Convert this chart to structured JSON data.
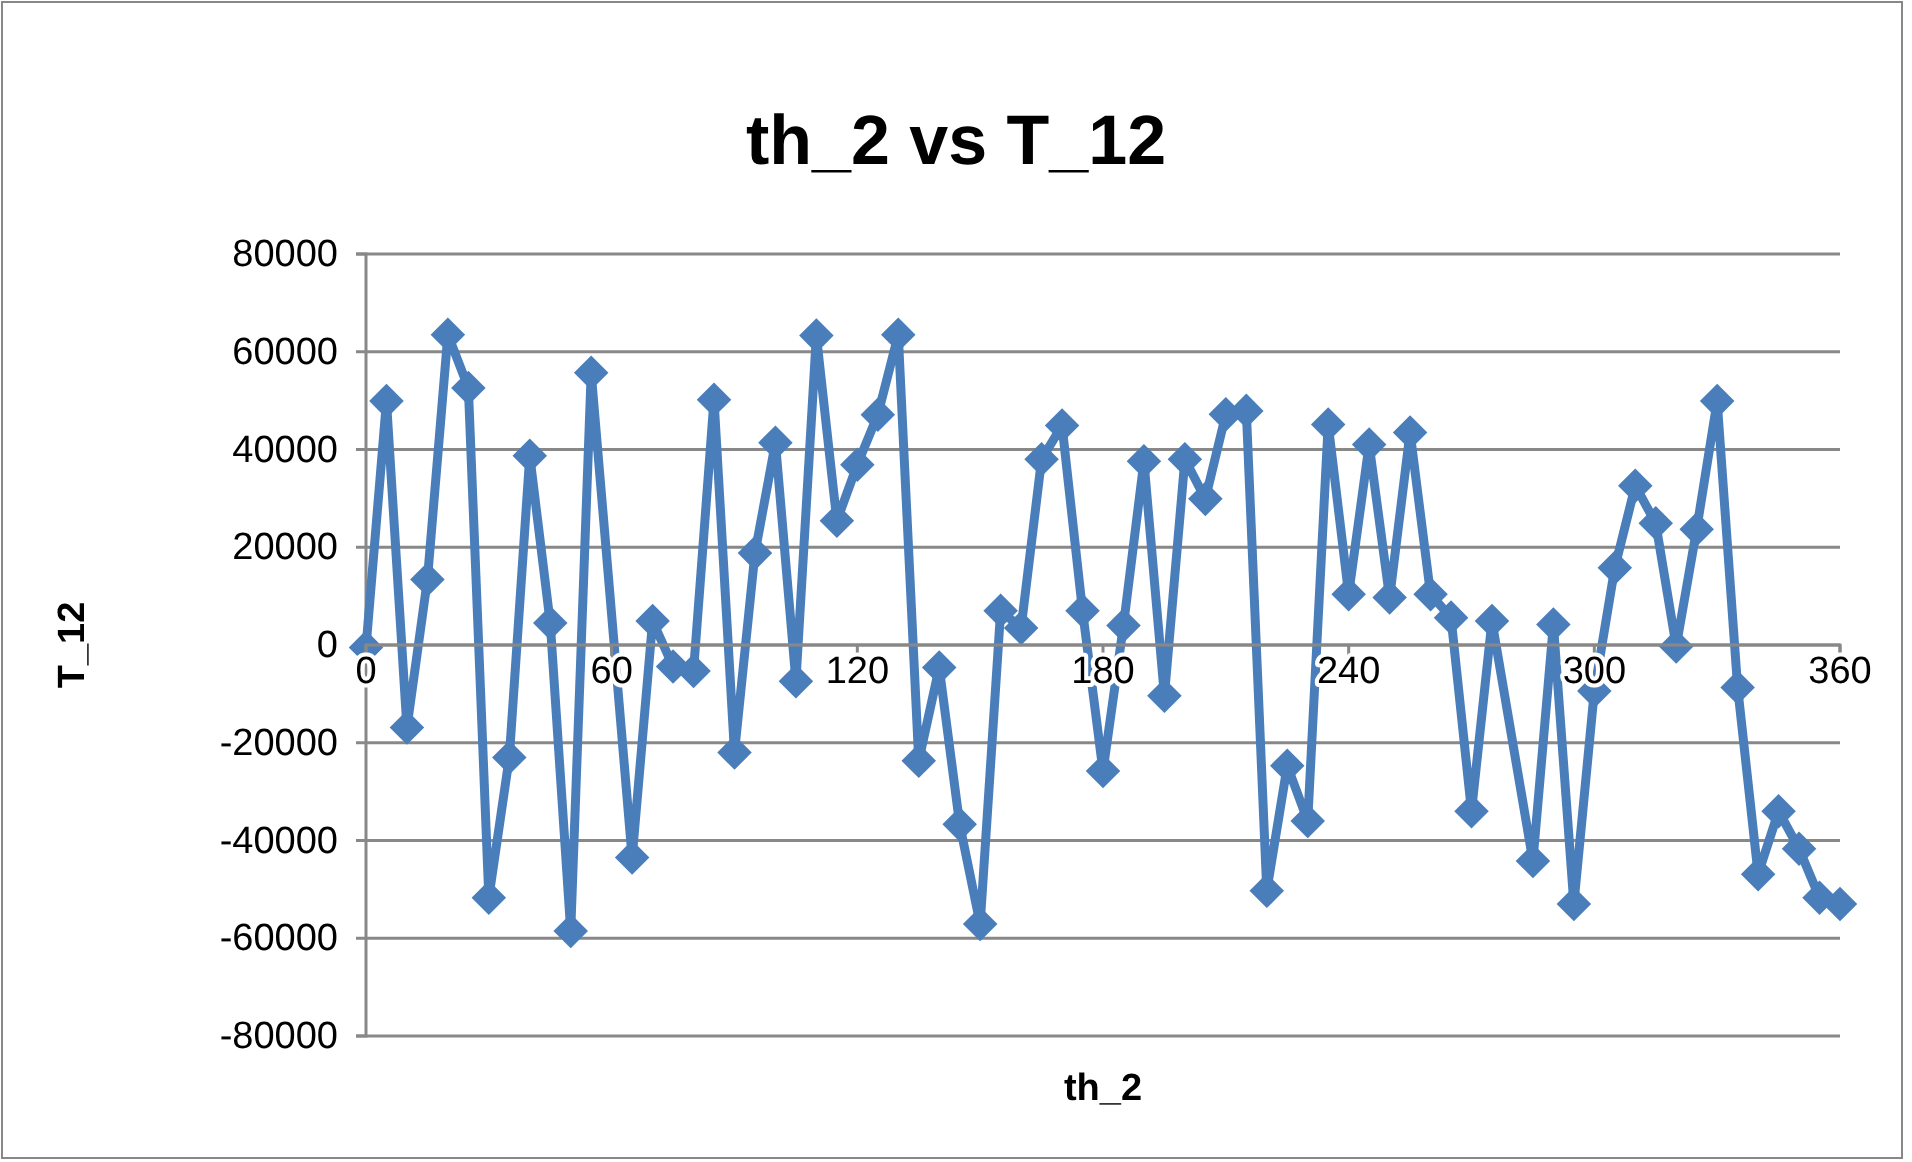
{
  "chart_data": {
    "type": "line",
    "title": "th_2 vs T_12",
    "xlabel": "th_2",
    "ylabel": "T_12",
    "x": [
      0,
      5,
      10,
      15,
      20,
      25,
      30,
      35,
      40,
      45,
      50,
      55,
      65,
      70,
      75,
      80,
      85,
      90,
      95,
      100,
      105,
      110,
      115,
      120,
      125,
      130,
      135,
      140,
      145,
      150,
      155,
      160,
      165,
      170,
      175,
      180,
      185,
      190,
      195,
      200,
      205,
      210,
      215,
      220,
      225,
      230,
      235,
      240,
      245,
      250,
      255,
      260,
      265,
      270,
      275,
      285,
      290,
      295,
      300,
      305,
      310,
      315,
      320,
      325,
      330,
      335,
      340,
      345,
      350,
      355,
      360
    ],
    "series": [
      {
        "color": "#4a7ebb",
        "values": [
          -500,
          49900,
          -16900,
          13400,
          63500,
          52600,
          -51700,
          -23000,
          38700,
          4500,
          -58500,
          55700,
          -43500,
          4900,
          -4400,
          -5300,
          50200,
          -22000,
          18800,
          41400,
          -7400,
          63300,
          25400,
          36900,
          47100,
          63500,
          -23700,
          -4600,
          -36700,
          -57100,
          7000,
          3500,
          38000,
          44900,
          7000,
          -25800,
          4000,
          37600,
          -10400,
          38000,
          29900,
          47200,
          47900,
          -50300,
          -24700,
          -36000,
          45100,
          10400,
          41000,
          9700,
          43500,
          10400,
          5600,
          -34000,
          4900,
          -44200,
          4200,
          -53000,
          -9400,
          15800,
          32600,
          24900,
          -300,
          23700,
          49900,
          -8700,
          -46900,
          -34000,
          -41700,
          -51700,
          -53000
        ]
      }
    ],
    "xlim": [
      0,
      360
    ],
    "xticks": [
      0,
      60,
      120,
      180,
      240,
      300,
      360
    ],
    "ylim": [
      -80000,
      80000
    ],
    "yticks": [
      -80000,
      -60000,
      -40000,
      -20000,
      0,
      20000,
      40000,
      60000,
      80000
    ],
    "grid": "y",
    "marker": "diamond",
    "line_style": "solid",
    "legend": false
  }
}
